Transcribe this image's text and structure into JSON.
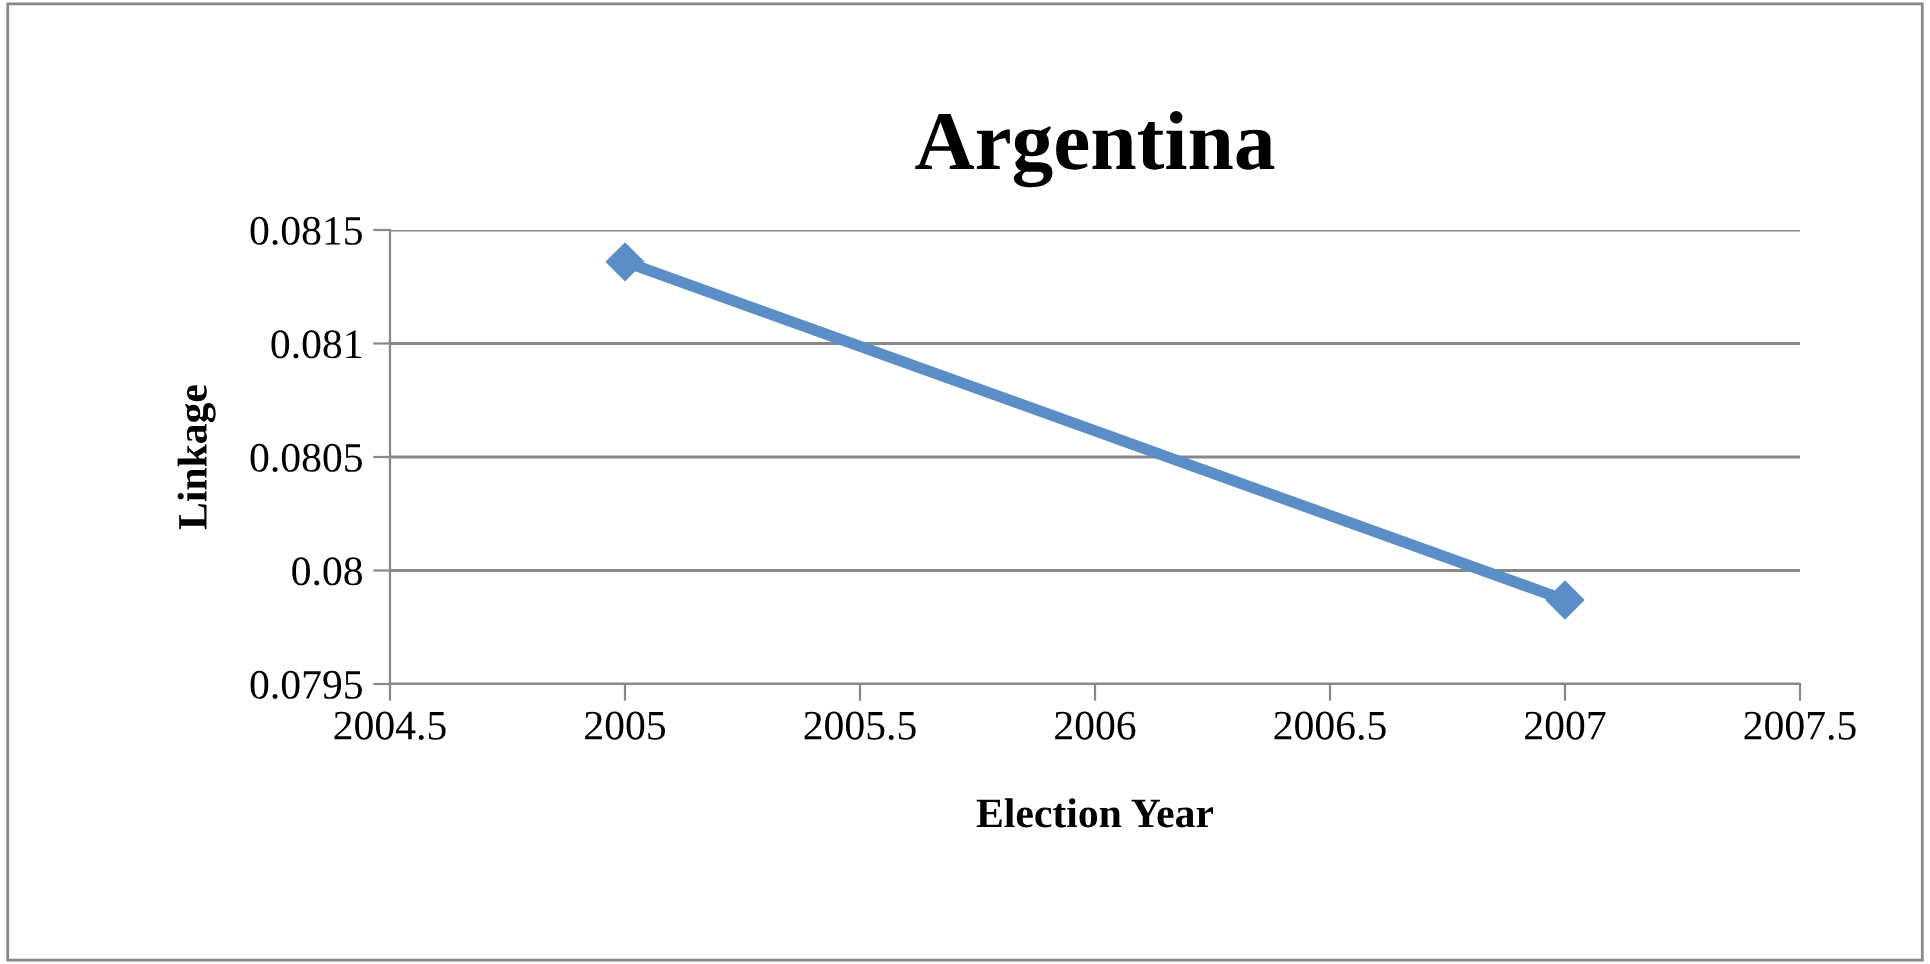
{
  "chart_data": {
    "type": "line",
    "title": "Argentina",
    "xlabel": "Election Year",
    "ylabel": "Linkage",
    "x": [
      2005,
      2007
    ],
    "series": [
      {
        "color": "#5b8ec6",
        "values": [
          0.08136,
          0.07987
        ]
      }
    ],
    "xlim": [
      2004.5,
      2007.5
    ],
    "xticks": [
      2004.5,
      2005,
      2005.5,
      2006,
      2006.5,
      2007,
      2007.5
    ],
    "ylim": [
      0.0795,
      0.0815
    ],
    "yticks": [
      0.0795,
      {
        "value": 0.08,
        "label": "0.08"
      },
      0.0805,
      0.081,
      0.0815
    ],
    "grid": "y",
    "marker": "diamond",
    "line_style": "solid"
  }
}
